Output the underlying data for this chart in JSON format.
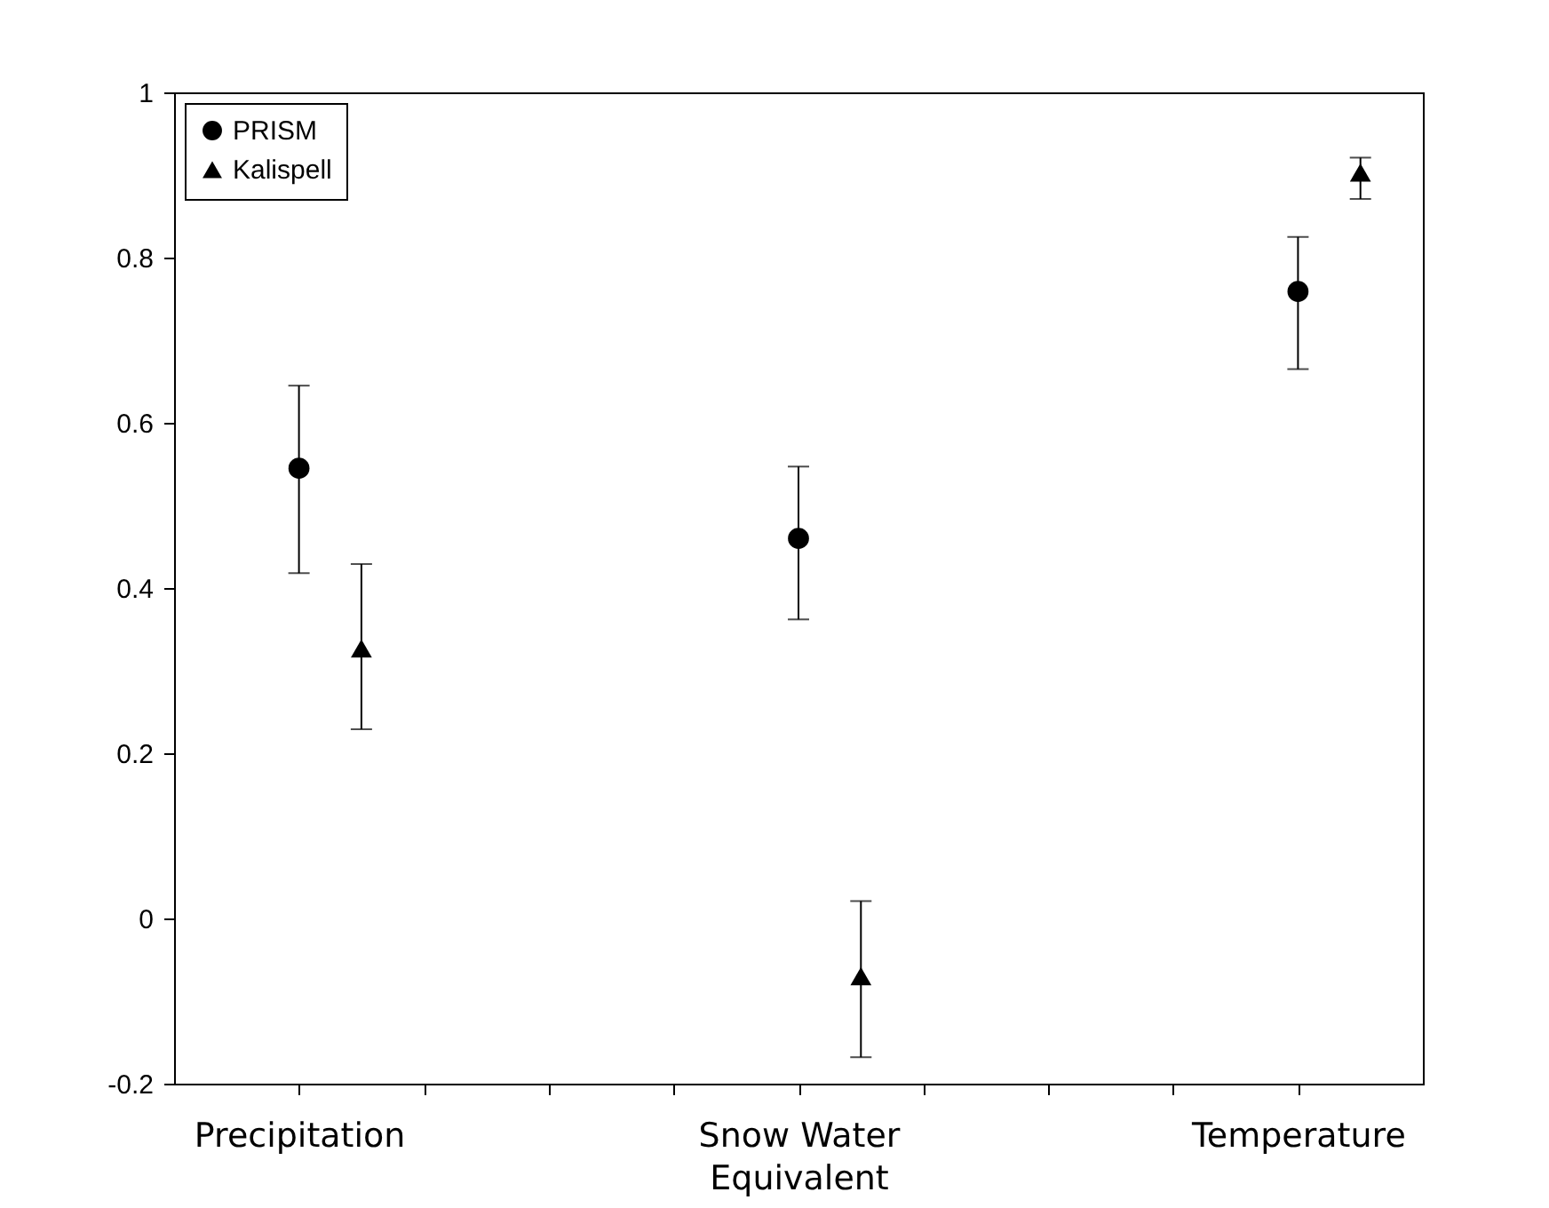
{
  "chart_data": {
    "type": "scatter",
    "categories": [
      "Precipitation",
      "Snow Water\nEquivalent",
      "Temperature"
    ],
    "series": [
      {
        "name": "PRISM",
        "color": "#000000",
        "marker": "circle",
        "x": [
          "Precipitation",
          "Snow Water\nEquivalent",
          "Temperature"
        ],
        "values": [
          0.545,
          0.46,
          0.759
        ],
        "errors": [
          [
            0.418,
            0.645
          ],
          [
            0.362,
            0.547
          ],
          [
            0.665,
            0.825
          ]
        ]
      },
      {
        "name": "Kalispell",
        "color": "#000000",
        "marker": "triangle",
        "x": [
          "Precipitation",
          "Snow Water\nEquivalent",
          "Temperature"
        ],
        "values": [
          0.327,
          -0.07,
          0.903
        ],
        "errors": [
          [
            0.229,
            0.429
          ],
          [
            -0.168,
            0.021
          ],
          [
            0.871,
            0.921
          ]
        ]
      }
    ],
    "ylim": [
      -0.2,
      1
    ],
    "yticks": [
      -0.2,
      0,
      0.2,
      0.4,
      0.6,
      0.8,
      1
    ],
    "grid": false,
    "legend": "top left"
  }
}
